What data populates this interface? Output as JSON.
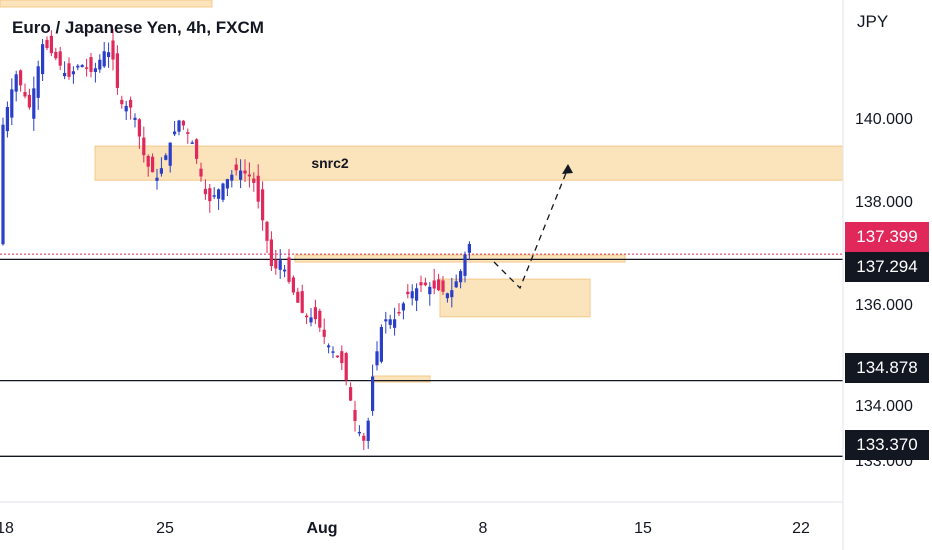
{
  "chart_data": {
    "type": "candlestick",
    "title": "Euro / Japanese Yen, 4h, FXCM",
    "currency": "JPY",
    "x_ticks": [
      "18",
      "25",
      "Aug",
      "8",
      "15",
      "22"
    ],
    "y_ticks": [
      "140.000",
      "138.000",
      "136.000",
      "134.000",
      "133.000"
    ],
    "ylim": [
      132.3,
      141.8
    ],
    "current_price": "137.399",
    "horizontal_levels": [
      {
        "label": "137.294",
        "value": 137.294
      },
      {
        "label": "134.878",
        "value": 134.878
      },
      {
        "label": "133.370",
        "value": 133.37
      }
    ],
    "zones": [
      {
        "label": "snrc2",
        "top": 139.55,
        "bottom": 138.87
      },
      {
        "label": "",
        "top": 137.38,
        "bottom": 137.24
      },
      {
        "label": "",
        "top": 136.9,
        "bottom": 136.15
      },
      {
        "label": "",
        "top": 134.97,
        "bottom": 134.85
      }
    ],
    "colors": {
      "up": "#2a3fc8",
      "down": "#e0285a",
      "zone": "#fbe3bc",
      "zone_border": "#f3c98a",
      "level": "#131722"
    }
  }
}
